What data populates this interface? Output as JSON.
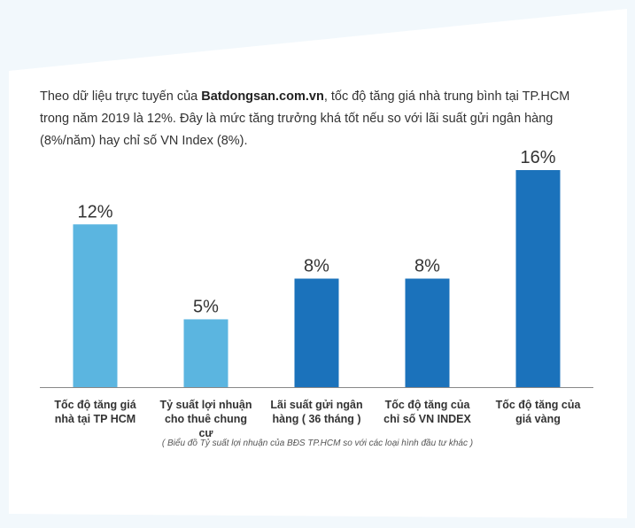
{
  "intro": {
    "prefix": "Theo dữ liệu trực tuyến của ",
    "site": "Batdongsan.com.vn",
    "suffix": ", tốc độ tăng giá nhà trung bình tại TP.HCM trong năm 2019 là 12%. Đây là mức tăng trưởng khá tốt nếu so với lãi suất gửi ngân hàng (8%/năm) hay chỉ số VN Index (8%)."
  },
  "caption": "( Biểu đồ Tỷ suất lợi nhuận của BĐS TP.HCM so với các loại hình đầu tư khác )",
  "colors": {
    "light_bar": "#5bb5e0",
    "dark_bar": "#1b72bb",
    "axis": "#888888",
    "card": "#ffffff",
    "background": "#e6f1f9"
  },
  "chart_data": {
    "type": "bar",
    "categories": [
      [
        "Tốc độ tăng giá",
        "nhà tại TP HCM"
      ],
      [
        "Tỷ suất lợi nhuận",
        "cho thuê chung",
        "cư"
      ],
      [
        "Lãi suất gửi ngân",
        "hàng ( 36 tháng )"
      ],
      [
        "Tốc độ tăng của",
        "chỉ số VN INDEX"
      ],
      [
        "Tốc độ tăng của",
        "giá vàng"
      ]
    ],
    "values": [
      12,
      5,
      8,
      8,
      16
    ],
    "value_labels": [
      "12%",
      "5%",
      "8%",
      "8%",
      "16%"
    ],
    "bar_colors": [
      "#5bb5e0",
      "#5bb5e0",
      "#1b72bb",
      "#1b72bb",
      "#1b72bb"
    ],
    "ylim": [
      0,
      16
    ],
    "grid": false,
    "legend": "none"
  }
}
